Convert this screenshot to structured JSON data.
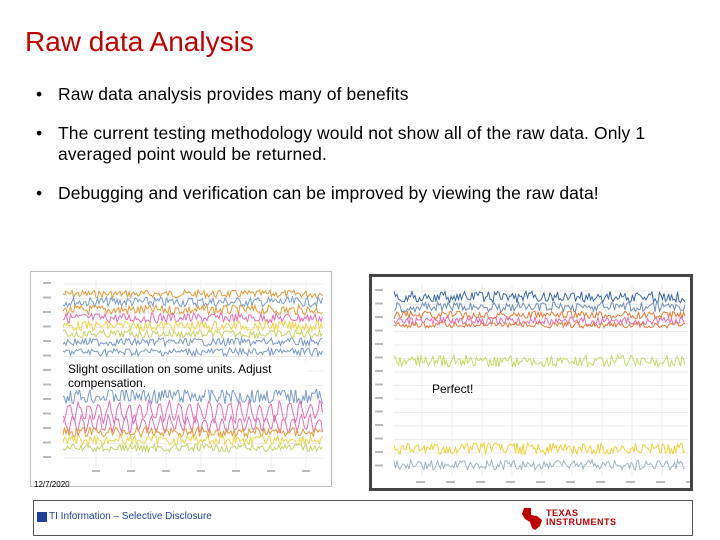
{
  "title": "Raw data Analysis",
  "bullets": [
    "Raw data analysis provides many of benefits",
    "The current testing methodology would not show all of the raw data. Only 1 averaged point would be returned.",
    "Debugging and verification can be improved by viewing the raw data!"
  ],
  "bullet_glyph": "•",
  "left_chart": {
    "caption": "Slight oscillation on some units. Adjust compensation.",
    "series_colors": [
      "#e59a3a",
      "#7a9cc8",
      "#e46fb6",
      "#c9d36a",
      "#f1d54c"
    ]
  },
  "right_chart": {
    "caption": "Perfect!",
    "series_colors": [
      "#3c6aa8",
      "#6f8fb8",
      "#e87a3a",
      "#e46fb6",
      "#c4dd6a",
      "#f0d23a",
      "#9fb7c4"
    ]
  },
  "date": "12/7/2020",
  "footer": {
    "classification": "TI Information – Selective Disclosure",
    "logo_line1": "TEXAS",
    "logo_line2": "INSTRUMENTS",
    "brand_color": "#c00000"
  }
}
